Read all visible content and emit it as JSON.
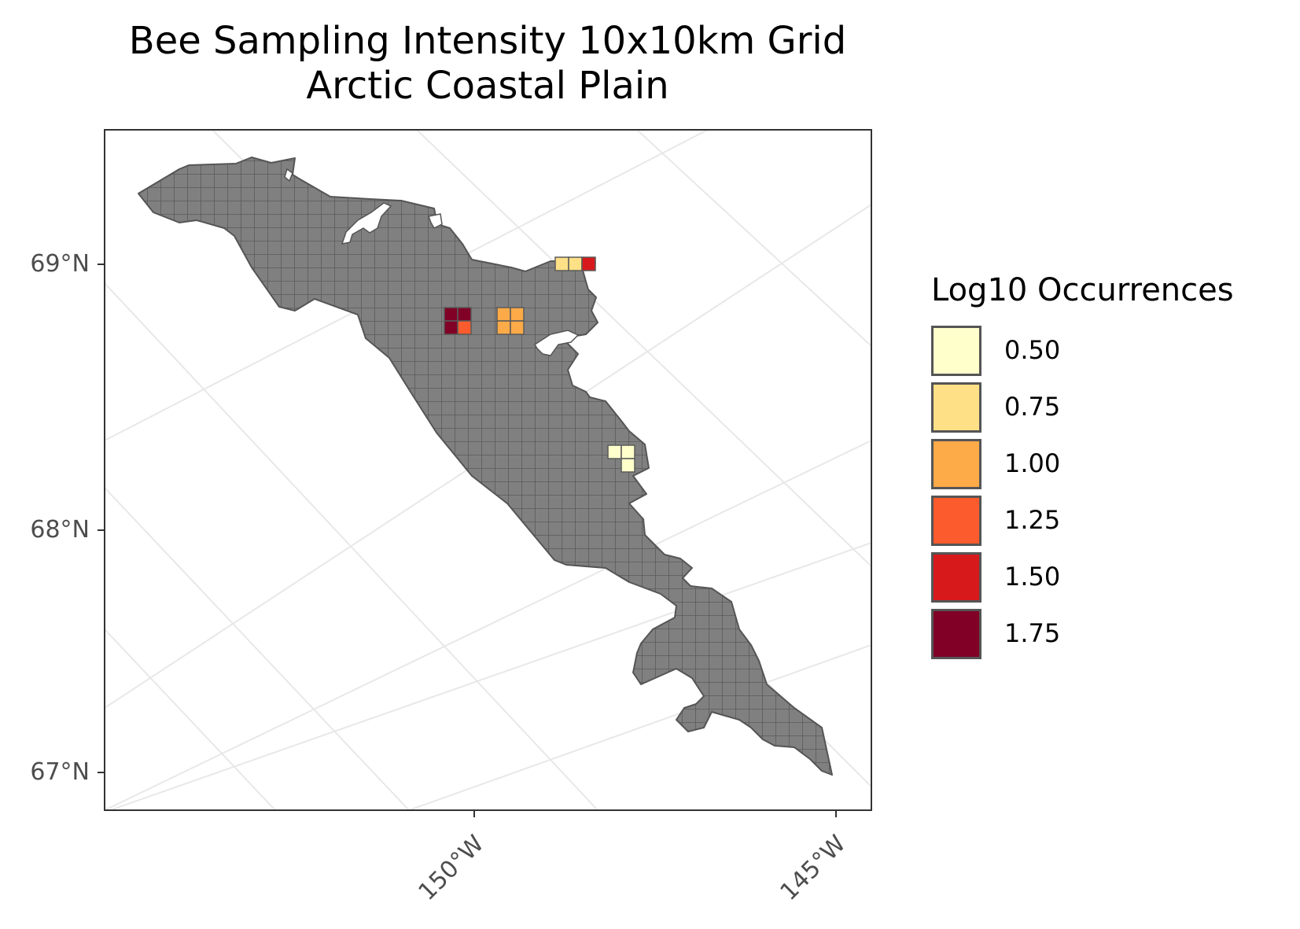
{
  "title": {
    "line1": "Bee Sampling Intensity 10x10km Grid",
    "line2": "Arctic Coastal Plain"
  },
  "axes": {
    "y_ticks": [
      "69°N",
      "68°N",
      "67°N"
    ],
    "x_ticks": [
      "150°W",
      "145°W"
    ]
  },
  "legend": {
    "title": "Log10 Occurrences",
    "items": [
      {
        "label": "0.50",
        "color": "#FFFFCC"
      },
      {
        "label": "0.75",
        "color": "#FEE087"
      },
      {
        "label": "1.00",
        "color": "#FDAA48"
      },
      {
        "label": "1.25",
        "color": "#FC5B2D"
      },
      {
        "label": "1.50",
        "color": "#D7191C"
      },
      {
        "label": "1.75",
        "color": "#800026"
      }
    ]
  },
  "map_colors": {
    "land": "#808080",
    "grid_line": "#5a5a5a",
    "graticule": "#e8e8e8",
    "panel_border": "#333333"
  },
  "cells": [
    {
      "value": 1.75
    },
    {
      "value": 1.75
    },
    {
      "value": 1.75
    },
    {
      "value": 1.25
    },
    {
      "value": 1.0
    },
    {
      "value": 1.0
    },
    {
      "value": 1.0
    },
    {
      "value": 1.0
    },
    {
      "value": 0.75
    },
    {
      "value": 0.75
    },
    {
      "value": 1.5
    },
    {
      "value": 0.5
    },
    {
      "value": 0.5
    },
    {
      "value": 0.5
    }
  ]
}
